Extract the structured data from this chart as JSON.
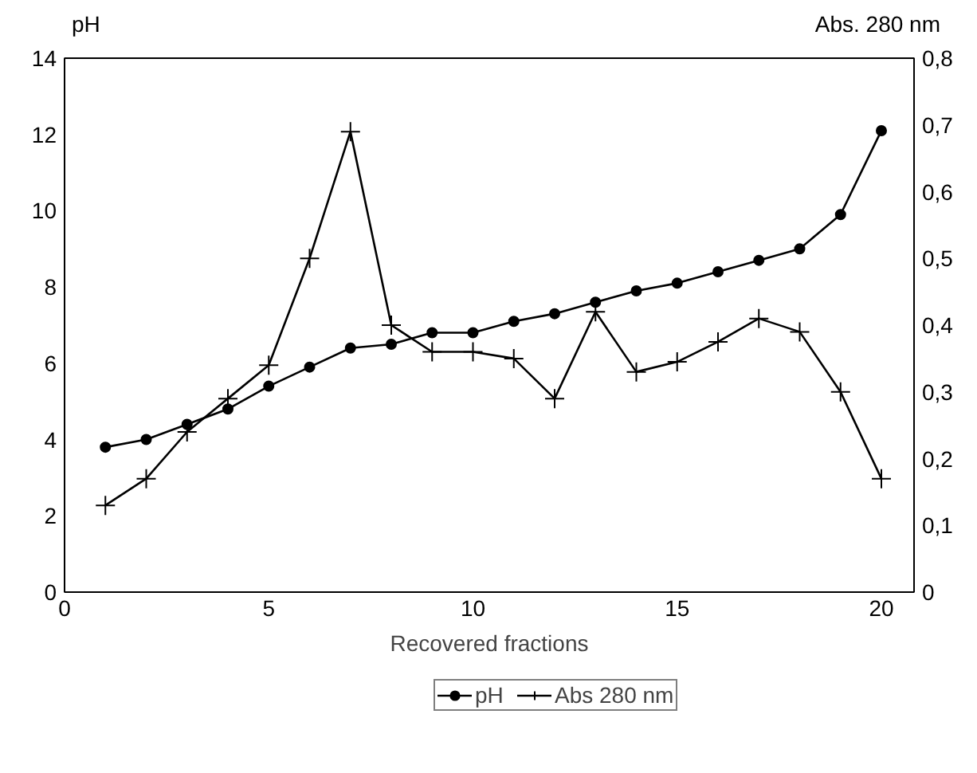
{
  "chart_data": {
    "type": "line",
    "xlabel": "Recovered fractions",
    "ylabel": "pH",
    "y2label": "Abs. 280 nm",
    "x": [
      1,
      2,
      3,
      4,
      5,
      6,
      7,
      8,
      9,
      10,
      11,
      12,
      13,
      14,
      15,
      16,
      17,
      18,
      19,
      20
    ],
    "series": [
      {
        "name": "pH",
        "color": "#000000",
        "marker": "circle",
        "values": [
          3.8,
          4.0,
          4.4,
          4.8,
          5.4,
          5.9,
          6.4,
          6.5,
          6.8,
          6.8,
          7.1,
          7.3,
          7.6,
          7.9,
          8.1,
          8.4,
          8.7,
          9.0,
          9.9,
          12.1
        ]
      },
      {
        "name": "Abs 280 nm",
        "color": "#000000",
        "marker": "cross",
        "axis": "y2",
        "values": [
          0.13,
          0.17,
          0.24,
          0.29,
          0.34,
          0.5,
          0.69,
          0.4,
          0.36,
          0.36,
          0.35,
          0.29,
          0.42,
          0.33,
          0.345,
          0.375,
          0.41,
          0.39,
          0.3,
          0.17
        ]
      }
    ],
    "xlim": [
      0,
      20.8
    ],
    "xticks": [
      0,
      5,
      10,
      15,
      20
    ],
    "ylim": [
      0,
      14
    ],
    "yticks": [
      0,
      2,
      4,
      6,
      8,
      10,
      12,
      14
    ],
    "y2lim": [
      0,
      0.8
    ],
    "y2ticks": [
      0,
      {
        "value": 0.1,
        "label": "0,1"
      },
      {
        "value": 0.2,
        "label": "0,2"
      },
      {
        "value": 0.3,
        "label": "0,3"
      },
      {
        "value": 0.4,
        "label": "0,4"
      },
      {
        "value": 0.5,
        "label": "0,5"
      },
      {
        "value": 0.6,
        "label": "0,6"
      },
      {
        "value": 0.7,
        "label": "0,7"
      },
      {
        "value": 0.8,
        "label": "0,8"
      }
    ],
    "grid": false,
    "legend": "bottom",
    "line_style": "solid"
  }
}
